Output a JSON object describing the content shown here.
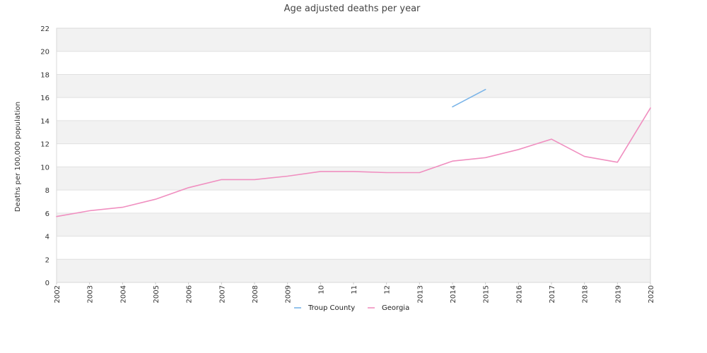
{
  "chart_data": {
    "type": "line",
    "title": "Age adjusted deaths per year",
    "xlabel": "",
    "ylabel": "Deaths per 100,000 population",
    "x": [
      "2002",
      "2003",
      "2004",
      "2005",
      "2006",
      "2007",
      "2008",
      "2009",
      "2010",
      "2011",
      "2012",
      "2013",
      "2014",
      "2015",
      "2016",
      "2017",
      "2018",
      "2019",
      "2020"
    ],
    "x_tick_labels": [
      "2002",
      "2003",
      "2004",
      "2005",
      "2006",
      "2007",
      "2008",
      "2009",
      "10",
      "11",
      "12",
      "2013",
      "2014",
      "2015",
      "2016",
      "2017",
      "2018",
      "2019",
      "2020"
    ],
    "ylim": [
      0,
      22
    ],
    "y_ticks": [
      0,
      2,
      4,
      6,
      8,
      10,
      12,
      14,
      16,
      18,
      20,
      22
    ],
    "grid": "alternating horizontal bands",
    "legend_position": "bottom-center",
    "series": [
      {
        "name": "Troup County",
        "color": "#7ab4e8",
        "values": [
          null,
          null,
          null,
          null,
          null,
          null,
          null,
          null,
          null,
          null,
          null,
          null,
          15.2,
          16.7,
          null,
          null,
          null,
          null,
          null
        ]
      },
      {
        "name": "Georgia",
        "color": "#f08fc0",
        "values": [
          5.7,
          6.2,
          6.5,
          7.2,
          8.2,
          8.9,
          8.9,
          9.2,
          9.6,
          9.6,
          9.5,
          9.5,
          10.5,
          10.8,
          11.5,
          12.4,
          10.9,
          10.4,
          15.1
        ]
      }
    ]
  }
}
